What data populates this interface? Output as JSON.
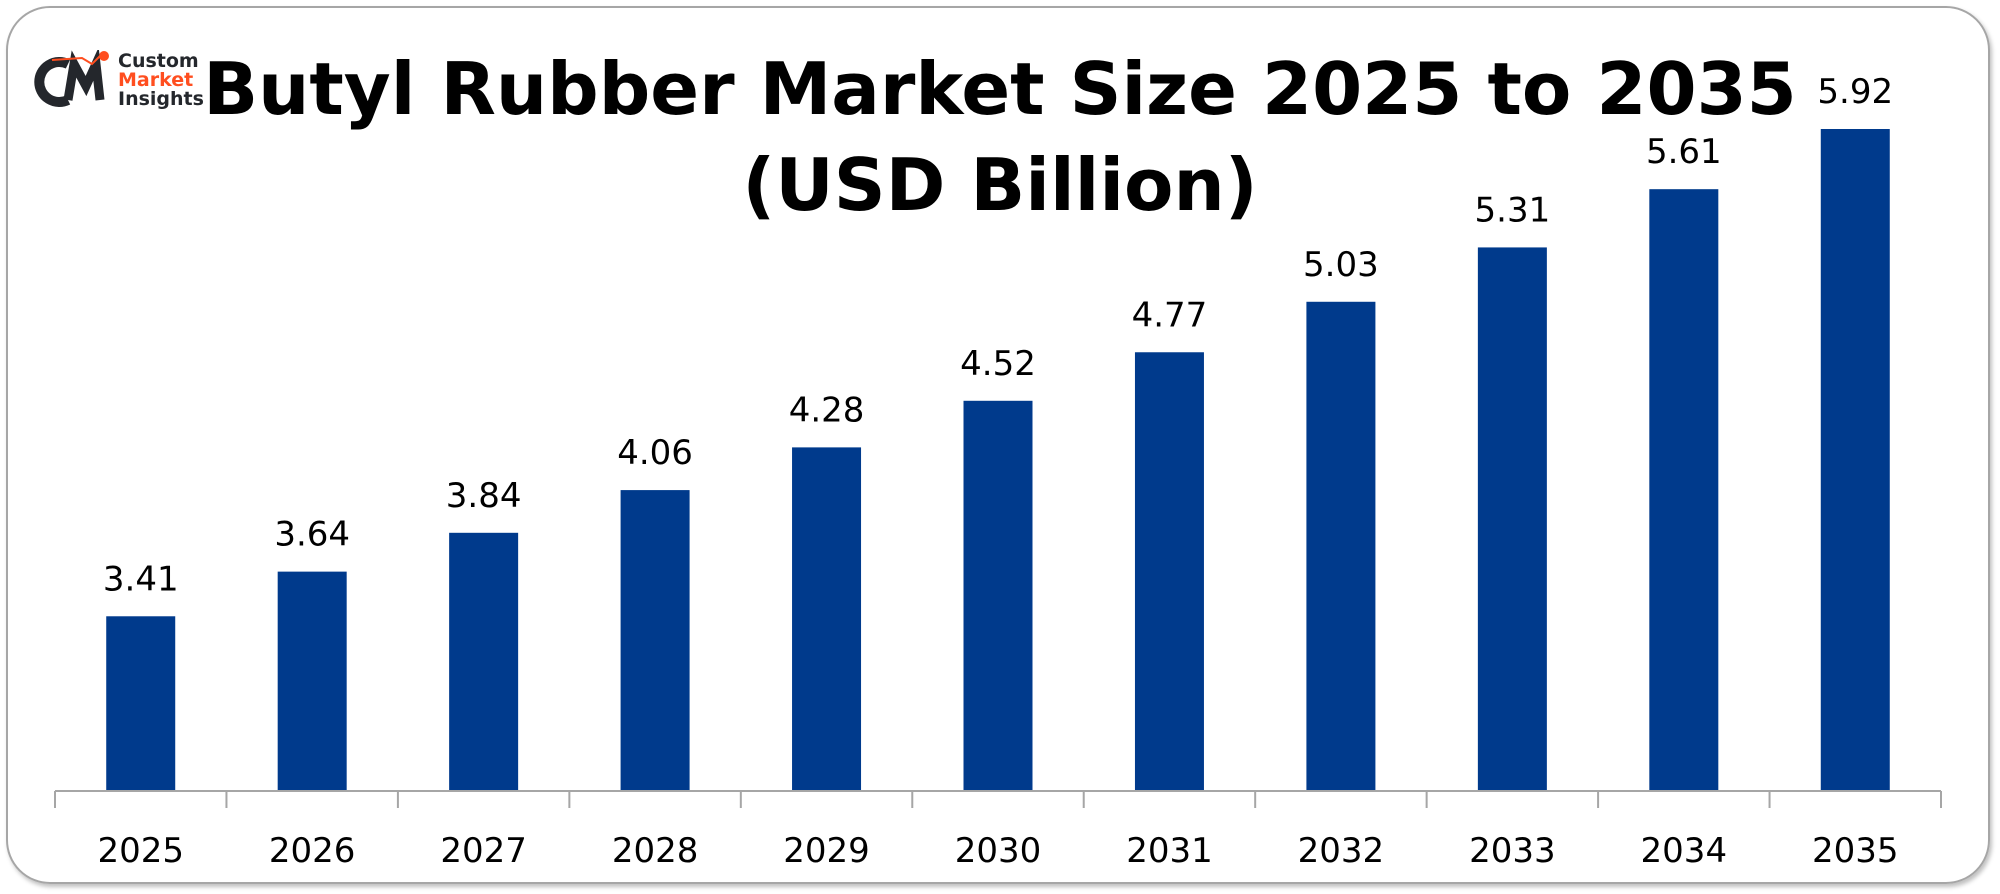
{
  "logo": {
    "text_line1": "Custom",
    "text_line2": "Market",
    "text_line3": "Insights",
    "mark": "CMI",
    "accent": "#ff4e1f",
    "dark": "#24272c"
  },
  "chart_data": {
    "type": "bar",
    "title_line1": "Butyl Rubber Market Size 2025 to 2035",
    "title_line2": "(USD Billion)",
    "categories": [
      "2025",
      "2026",
      "2027",
      "2028",
      "2029",
      "2030",
      "2031",
      "2032",
      "2033",
      "2034",
      "2035"
    ],
    "values": [
      3.41,
      3.64,
      3.84,
      4.06,
      4.28,
      4.52,
      4.77,
      5.03,
      5.31,
      5.61,
      5.92
    ],
    "value_labels": [
      "3.41",
      "3.64",
      "3.84",
      "4.06",
      "4.28",
      "4.52",
      "4.77",
      "5.03",
      "5.31",
      "5.61",
      "5.92"
    ],
    "xlabel": "",
    "ylabel": "",
    "ylim": [
      2.51,
      6.0
    ],
    "grid": false,
    "legend": "none",
    "bar_color": "#003a8c"
  }
}
